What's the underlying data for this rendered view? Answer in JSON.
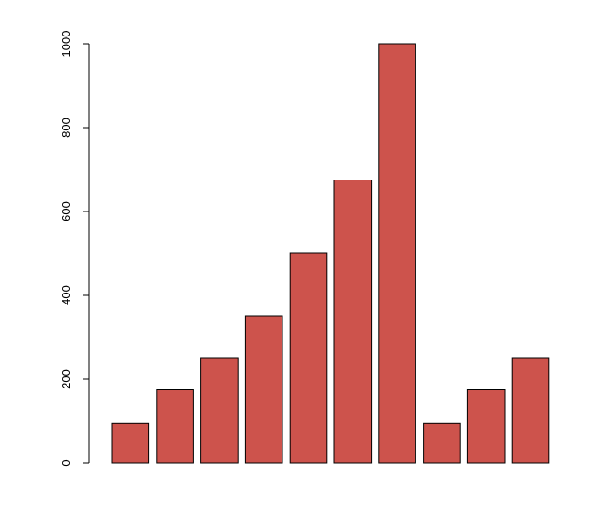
{
  "chart_data": {
    "type": "bar",
    "values": [
      95,
      175,
      250,
      350,
      500,
      675,
      1000,
      95,
      175,
      250
    ],
    "ylim": [
      0,
      1000
    ],
    "yticks": [
      0,
      200,
      400,
      600,
      800,
      1000
    ],
    "bar_color": "#cd534c",
    "border_color": "#000000",
    "grid": false,
    "legend": "none"
  }
}
